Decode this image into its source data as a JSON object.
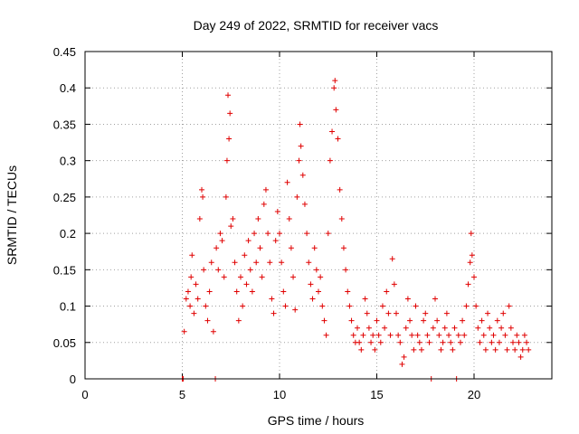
{
  "chart_data": {
    "type": "scatter",
    "title": "Day 249 of 2022, SRMTID for receiver vacs",
    "xlabel": "GPS time / hours",
    "ylabel": "SRMTID / TECUs",
    "xlim": [
      0,
      24
    ],
    "ylim": [
      0,
      0.45
    ],
    "xticks": [
      0,
      5,
      10,
      15,
      20
    ],
    "xtick_labels": [
      "0",
      "5",
      "10",
      "15",
      "20"
    ],
    "yticks": [
      0,
      0.05,
      0.1,
      0.15,
      0.2,
      0.25,
      0.3,
      0.35,
      0.4,
      0.45
    ],
    "ytick_labels": [
      "0",
      "0.05",
      "0.1",
      "0.15",
      "0.2",
      "0.25",
      "0.3",
      "0.35",
      "0.4",
      "0.45"
    ],
    "grid": true,
    "marker": "+",
    "marker_color": "#e00000",
    "series": [
      {
        "name": "vacs",
        "points": [
          [
            5.0,
            0.0
          ],
          [
            5.05,
            0.0
          ],
          [
            5.1,
            0.065
          ],
          [
            5.2,
            0.11
          ],
          [
            5.3,
            0.12
          ],
          [
            5.4,
            0.1
          ],
          [
            5.45,
            0.14
          ],
          [
            5.5,
            0.17
          ],
          [
            5.6,
            0.09
          ],
          [
            5.7,
            0.13
          ],
          [
            5.8,
            0.11
          ],
          [
            5.9,
            0.22
          ],
          [
            6.0,
            0.26
          ],
          [
            6.05,
            0.25
          ],
          [
            6.1,
            0.15
          ],
          [
            6.2,
            0.1
          ],
          [
            6.3,
            0.08
          ],
          [
            6.4,
            0.12
          ],
          [
            6.5,
            0.16
          ],
          [
            6.6,
            0.065
          ],
          [
            6.7,
            0.0
          ],
          [
            6.75,
            0.18
          ],
          [
            6.85,
            0.15
          ],
          [
            6.95,
            0.2
          ],
          [
            7.05,
            0.19
          ],
          [
            7.15,
            0.14
          ],
          [
            7.25,
            0.25
          ],
          [
            7.3,
            0.3
          ],
          [
            7.35,
            0.39
          ],
          [
            7.4,
            0.33
          ],
          [
            7.45,
            0.365
          ],
          [
            7.5,
            0.21
          ],
          [
            7.6,
            0.22
          ],
          [
            7.7,
            0.16
          ],
          [
            7.8,
            0.12
          ],
          [
            7.9,
            0.08
          ],
          [
            8.0,
            0.14
          ],
          [
            8.1,
            0.1
          ],
          [
            8.2,
            0.17
          ],
          [
            8.3,
            0.13
          ],
          [
            8.4,
            0.19
          ],
          [
            8.5,
            0.15
          ],
          [
            8.6,
            0.12
          ],
          [
            8.7,
            0.2
          ],
          [
            8.8,
            0.16
          ],
          [
            8.9,
            0.22
          ],
          [
            9.0,
            0.18
          ],
          [
            9.1,
            0.14
          ],
          [
            9.2,
            0.24
          ],
          [
            9.3,
            0.26
          ],
          [
            9.4,
            0.2
          ],
          [
            9.5,
            0.16
          ],
          [
            9.6,
            0.11
          ],
          [
            9.7,
            0.09
          ],
          [
            9.8,
            0.19
          ],
          [
            9.9,
            0.23
          ],
          [
            10.0,
            0.2
          ],
          [
            10.1,
            0.16
          ],
          [
            10.2,
            0.12
          ],
          [
            10.3,
            0.1
          ],
          [
            10.4,
            0.27
          ],
          [
            10.5,
            0.22
          ],
          [
            10.6,
            0.18
          ],
          [
            10.7,
            0.14
          ],
          [
            10.8,
            0.095
          ],
          [
            10.9,
            0.25
          ],
          [
            11.0,
            0.3
          ],
          [
            11.05,
            0.35
          ],
          [
            11.1,
            0.32
          ],
          [
            11.2,
            0.28
          ],
          [
            11.3,
            0.24
          ],
          [
            11.4,
            0.2
          ],
          [
            11.5,
            0.16
          ],
          [
            11.6,
            0.13
          ],
          [
            11.7,
            0.11
          ],
          [
            11.8,
            0.18
          ],
          [
            11.9,
            0.15
          ],
          [
            12.0,
            0.12
          ],
          [
            12.1,
            0.14
          ],
          [
            12.2,
            0.1
          ],
          [
            12.3,
            0.08
          ],
          [
            12.4,
            0.06
          ],
          [
            12.5,
            0.2
          ],
          [
            12.6,
            0.3
          ],
          [
            12.7,
            0.34
          ],
          [
            12.8,
            0.4
          ],
          [
            12.85,
            0.41
          ],
          [
            12.9,
            0.37
          ],
          [
            13.0,
            0.33
          ],
          [
            13.1,
            0.26
          ],
          [
            13.2,
            0.22
          ],
          [
            13.3,
            0.18
          ],
          [
            13.4,
            0.15
          ],
          [
            13.5,
            0.12
          ],
          [
            13.6,
            0.1
          ],
          [
            13.7,
            0.08
          ],
          [
            13.8,
            0.06
          ],
          [
            13.9,
            0.05
          ],
          [
            14.0,
            0.07
          ],
          [
            14.1,
            0.05
          ],
          [
            14.2,
            0.04
          ],
          [
            14.3,
            0.06
          ],
          [
            14.4,
            0.11
          ],
          [
            14.5,
            0.09
          ],
          [
            14.6,
            0.07
          ],
          [
            14.7,
            0.05
          ],
          [
            14.8,
            0.06
          ],
          [
            14.9,
            0.04
          ],
          [
            15.0,
            0.08
          ],
          [
            15.1,
            0.06
          ],
          [
            15.2,
            0.05
          ],
          [
            15.3,
            0.1
          ],
          [
            15.4,
            0.07
          ],
          [
            15.5,
            0.12
          ],
          [
            15.6,
            0.09
          ],
          [
            15.7,
            0.06
          ],
          [
            15.8,
            0.165
          ],
          [
            15.9,
            0.13
          ],
          [
            16.0,
            0.09
          ],
          [
            16.1,
            0.06
          ],
          [
            16.2,
            0.05
          ],
          [
            16.3,
            0.02
          ],
          [
            16.4,
            0.03
          ],
          [
            16.5,
            0.07
          ],
          [
            16.6,
            0.11
          ],
          [
            16.7,
            0.08
          ],
          [
            16.8,
            0.06
          ],
          [
            16.9,
            0.04
          ],
          [
            17.0,
            0.1
          ],
          [
            17.1,
            0.06
          ],
          [
            17.2,
            0.05
          ],
          [
            17.3,
            0.04
          ],
          [
            17.4,
            0.08
          ],
          [
            17.5,
            0.09
          ],
          [
            17.6,
            0.06
          ],
          [
            17.7,
            0.05
          ],
          [
            17.8,
            0.0
          ],
          [
            17.9,
            0.07
          ],
          [
            18.0,
            0.11
          ],
          [
            18.1,
            0.08
          ],
          [
            18.2,
            0.06
          ],
          [
            18.3,
            0.04
          ],
          [
            18.4,
            0.05
          ],
          [
            18.5,
            0.07
          ],
          [
            18.6,
            0.09
          ],
          [
            18.7,
            0.06
          ],
          [
            18.8,
            0.05
          ],
          [
            18.9,
            0.04
          ],
          [
            19.0,
            0.07
          ],
          [
            19.1,
            0.0
          ],
          [
            19.2,
            0.06
          ],
          [
            19.3,
            0.05
          ],
          [
            19.4,
            0.08
          ],
          [
            19.5,
            0.06
          ],
          [
            19.6,
            0.1
          ],
          [
            19.7,
            0.13
          ],
          [
            19.8,
            0.16
          ],
          [
            19.85,
            0.2
          ],
          [
            19.9,
            0.17
          ],
          [
            20.0,
            0.14
          ],
          [
            20.1,
            0.1
          ],
          [
            20.2,
            0.07
          ],
          [
            20.3,
            0.05
          ],
          [
            20.4,
            0.08
          ],
          [
            20.5,
            0.06
          ],
          [
            20.6,
            0.04
          ],
          [
            20.7,
            0.09
          ],
          [
            20.8,
            0.07
          ],
          [
            20.9,
            0.05
          ],
          [
            21.0,
            0.06
          ],
          [
            21.1,
            0.04
          ],
          [
            21.2,
            0.08
          ],
          [
            21.3,
            0.05
          ],
          [
            21.4,
            0.07
          ],
          [
            21.5,
            0.09
          ],
          [
            21.6,
            0.06
          ],
          [
            21.7,
            0.04
          ],
          [
            21.8,
            0.1
          ],
          [
            21.9,
            0.07
          ],
          [
            22.0,
            0.05
          ],
          [
            22.1,
            0.04
          ],
          [
            22.2,
            0.06
          ],
          [
            22.3,
            0.05
          ],
          [
            22.4,
            0.03
          ],
          [
            22.5,
            0.04
          ],
          [
            22.6,
            0.06
          ],
          [
            22.7,
            0.05
          ],
          [
            22.8,
            0.04
          ]
        ]
      }
    ]
  }
}
